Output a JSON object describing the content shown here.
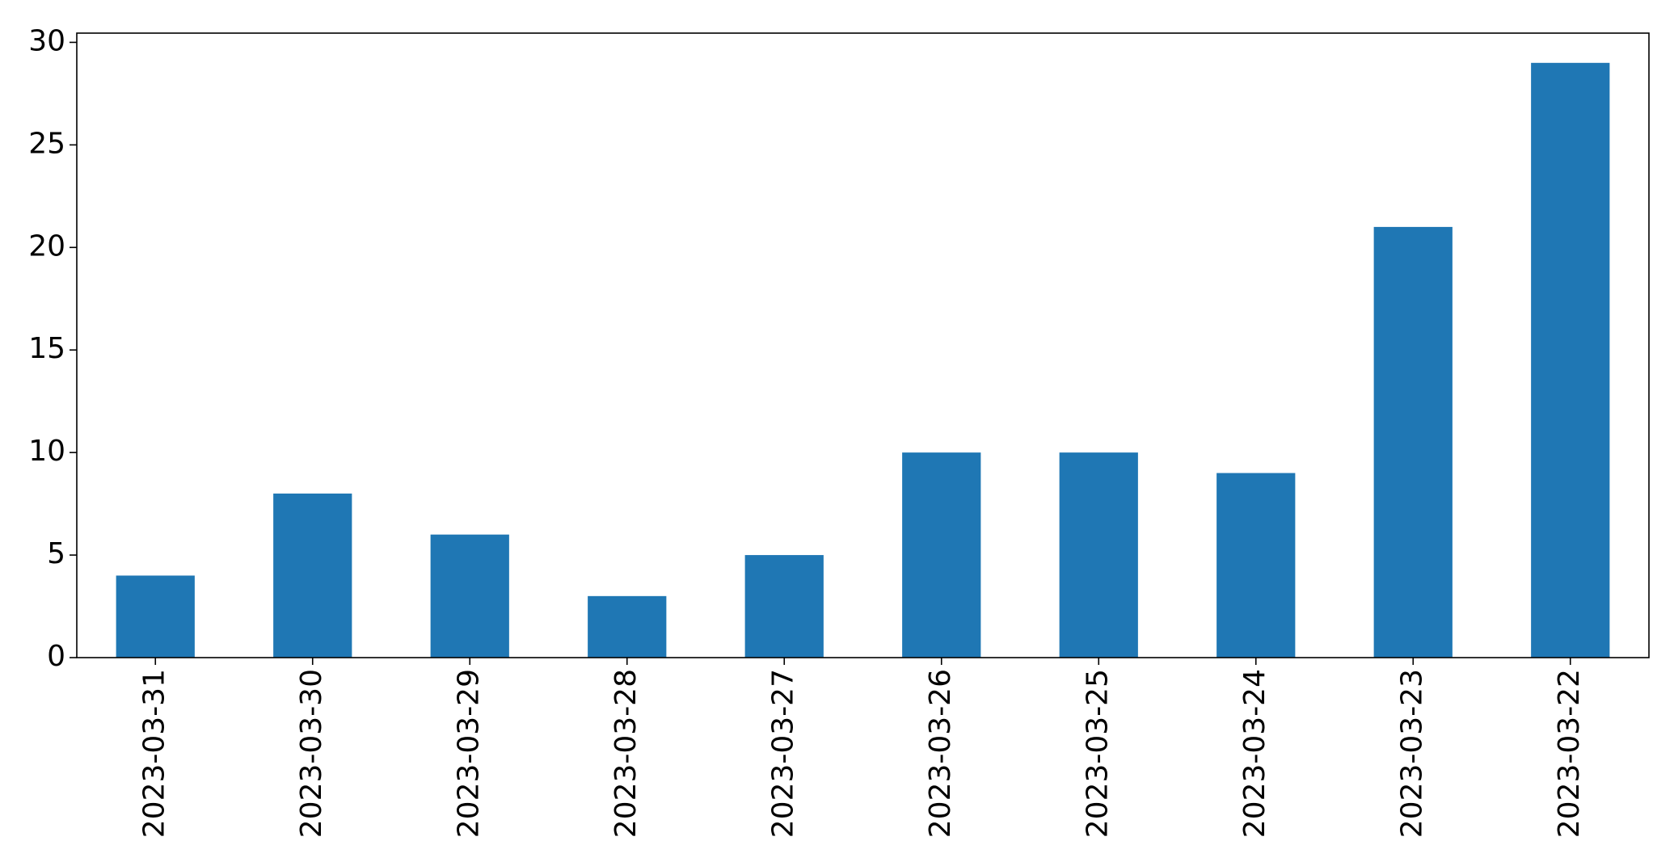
{
  "chart_data": {
    "type": "bar",
    "title": "",
    "xlabel": "",
    "ylabel": "",
    "categories": [
      "2023-03-31",
      "2023-03-30",
      "2023-03-29",
      "2023-03-28",
      "2023-03-27",
      "2023-03-26",
      "2023-03-25",
      "2023-03-24",
      "2023-03-23",
      "2023-03-22"
    ],
    "values": [
      4,
      8,
      6,
      3,
      5,
      10,
      10,
      9,
      21,
      29
    ],
    "ylim": [
      0,
      30.45
    ],
    "yticks": [
      0,
      5,
      10,
      15,
      20,
      25,
      30
    ],
    "grid": false,
    "legend": "none",
    "bar_color": "#1f77b4",
    "xtick_rotation": "vertical"
  }
}
